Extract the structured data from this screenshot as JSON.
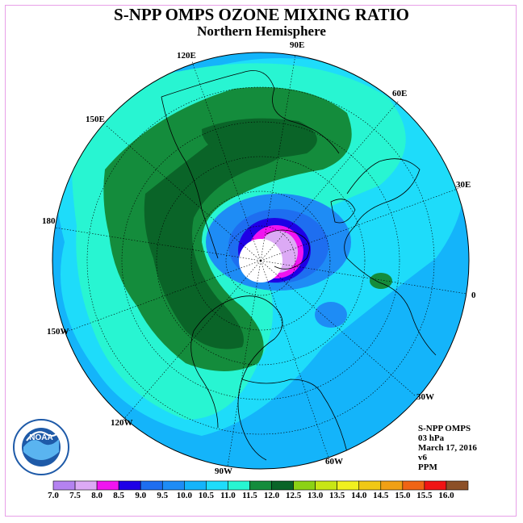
{
  "title": "S-NPP OMPS OZONE MIXING RATIO",
  "subtitle": "Northern Hemisphere",
  "longitude_labels": [
    "120E",
    "90E",
    "60E",
    "150E",
    "30E",
    "180",
    "0",
    "150W",
    "30W",
    "120W",
    "60W",
    "90W"
  ],
  "info": {
    "instrument": "S-NPP OMPS",
    "level": "03 hPa",
    "date": "March 17, 2016",
    "version": "v6",
    "units": "PPM"
  },
  "logo": {
    "text": "NOAA",
    "ring_text": "NATIONAL OCEANIC AND ATMOSPHERIC ADMINISTRATION · U.S. DEPARTMENT OF COMMERCE"
  },
  "colorbar": {
    "ticks": [
      "7.0",
      "7.5",
      "8.0",
      "8.5",
      "9.0",
      "9.5",
      "10.0",
      "10.5",
      "11.0",
      "11.5",
      "12.0",
      "12.5",
      "13.0",
      "13.5",
      "14.0",
      "14.5",
      "15.0",
      "15.5",
      "16.0"
    ],
    "colors": [
      "#b482f0",
      "#dcaaf5",
      "#f014f0",
      "#1e00e6",
      "#1e6ef0",
      "#1e8cf5",
      "#14b4fa",
      "#1edcfa",
      "#28f5d2",
      "#148c3c",
      "#0a6428",
      "#8cd214",
      "#c8e614",
      "#f0f01e",
      "#f0c814",
      "#f0a014",
      "#f06414",
      "#f01414",
      "#8c5028"
    ]
  }
}
